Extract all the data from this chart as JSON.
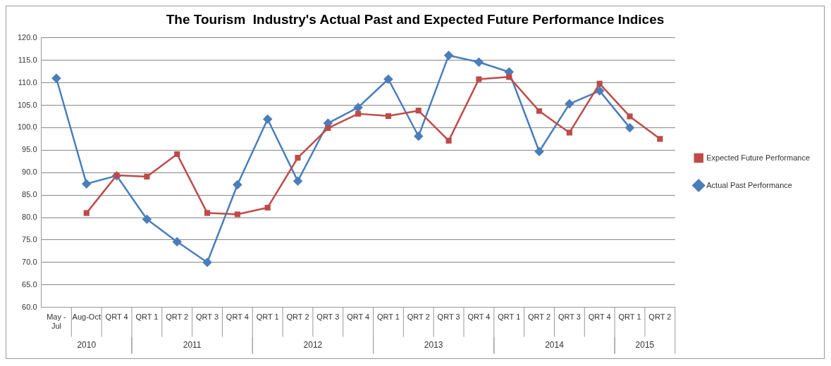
{
  "chart_data": {
    "type": "line",
    "title": "The Tourism  Industry's Actual Past and Expected Future Performance Indices",
    "categories": [
      "May - Jul",
      "Aug-Oct",
      "QRT 4",
      "QRT 1",
      "QRT 2",
      "QRT 3",
      "QRT 4",
      "QRT 1",
      "QRT 2",
      "QRT 3",
      "QRT 4",
      "QRT 1",
      "QRT 2",
      "QRT 3",
      "QRT 4",
      "QRT 1",
      "QRT 2",
      "QRT 3",
      "QRT 4",
      "QRT 1",
      "QRT 2"
    ],
    "series": [
      {
        "name": "Actual Past Performance",
        "color": "#4a7ebb",
        "marker": "diamond",
        "values": [
          111.0,
          87.5,
          89.3,
          79.6,
          74.6,
          70.0,
          87.3,
          101.9,
          88.1,
          101.0,
          104.5,
          110.8,
          98.1,
          116.1,
          114.6,
          112.4,
          94.7,
          105.3,
          108.2,
          100.0,
          null
        ]
      },
      {
        "name": "Expected Future Performance",
        "color": "#be4b48",
        "marker": "square",
        "values": [
          null,
          81.0,
          89.4,
          89.1,
          94.1,
          81.0,
          80.7,
          82.2,
          93.3,
          99.9,
          103.1,
          102.6,
          103.8,
          97.1,
          110.8,
          111.3,
          103.7,
          98.9,
          109.8,
          102.5,
          97.5
        ]
      }
    ],
    "annotations": [
      "2010",
      "2011",
      "2012",
      "2013",
      "2014",
      "2015"
    ],
    "ylim": [
      60,
      120
    ],
    "yticks": [
      {
        "value": 60,
        "label": "60.0"
      },
      {
        "value": 65,
        "label": "65.0"
      },
      {
        "value": 70,
        "label": "70.0"
      },
      {
        "value": 75,
        "label": "75.0"
      },
      {
        "value": 80,
        "label": "80.0"
      },
      {
        "value": 85,
        "label": "85.0"
      },
      {
        "value": 90,
        "label": "90.0"
      },
      {
        "value": 95,
        "label": "95.0"
      },
      {
        "value": 100,
        "label": "100.0"
      },
      {
        "value": 105,
        "label": "105.0"
      },
      {
        "value": 110,
        "label": "110.0"
      },
      {
        "value": 115,
        "label": "115.0"
      },
      {
        "value": 120,
        "label": "120.0"
      }
    ],
    "grid": "y",
    "legend": "right",
    "line_style": "solid"
  }
}
